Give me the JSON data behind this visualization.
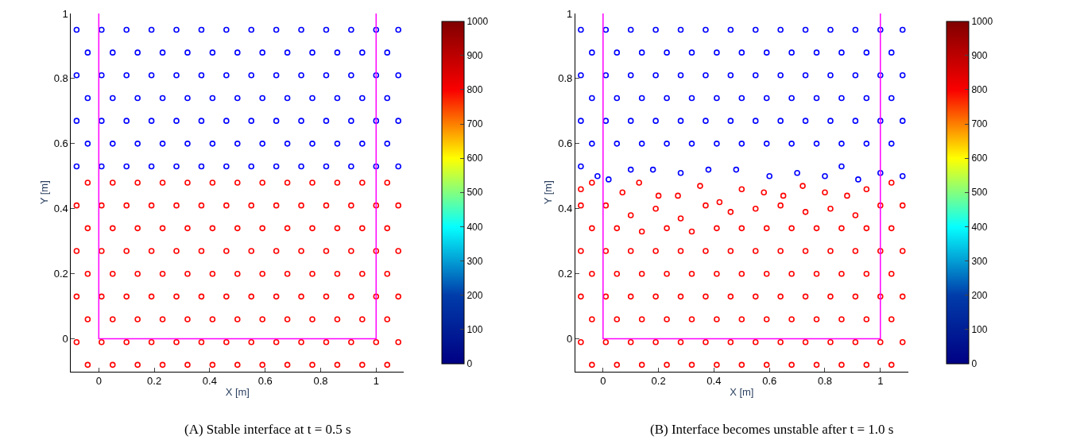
{
  "chart_data": [
    {
      "type": "scatter",
      "title": "(A) Stable interface at t = 0.5 s",
      "xlabel": "X [m]",
      "ylabel": "Y [m]",
      "xlim": [
        -0.1,
        1.1
      ],
      "ylim": [
        -0.1,
        1.0
      ],
      "xticks": [
        0,
        0.2,
        0.4,
        0.6,
        0.8,
        1
      ],
      "yticks": [
        0,
        0.2,
        0.4,
        0.6,
        0.8,
        1
      ],
      "clim": [
        0,
        1000
      ],
      "cticks": [
        0,
        100,
        200,
        300,
        400,
        500,
        600,
        700,
        800,
        900,
        1000
      ],
      "marker": "circle",
      "series": [
        {
          "color": "#0000ff",
          "x": [
            -0.08,
            0.01,
            0.1,
            0.19,
            0.28,
            0.37,
            0.46,
            0.55,
            0.64,
            0.73,
            0.82,
            0.91,
            1.0,
            1.08,
            -0.04,
            0.05,
            0.14,
            0.23,
            0.32,
            0.41,
            0.5,
            0.59,
            0.68,
            0.77,
            0.86,
            0.95,
            1.04,
            -0.08,
            0.01,
            0.1,
            0.19,
            0.28,
            0.37,
            0.46,
            0.55,
            0.64,
            0.73,
            0.82,
            0.91,
            1.0,
            1.08,
            -0.04,
            0.05,
            0.14,
            0.23,
            0.32,
            0.41,
            0.5,
            0.59,
            0.68,
            0.77,
            0.86,
            0.95,
            1.04,
            -0.08,
            0.01,
            0.1,
            0.19,
            0.28,
            0.37,
            0.46,
            0.55,
            0.64,
            0.73,
            0.82,
            0.91,
            1.0,
            1.08,
            -0.04,
            0.05,
            0.14,
            0.23,
            0.32,
            0.41,
            0.5,
            0.59,
            0.68,
            0.77,
            0.86,
            0.95,
            1.04,
            -0.08,
            0.01,
            0.1,
            0.19,
            0.28,
            0.37,
            0.46,
            0.55,
            0.64,
            0.73,
            0.82,
            0.91,
            1.0,
            1.08
          ],
          "values": [
            0.95,
            0.95,
            0.95,
            0.95,
            0.95,
            0.95,
            0.95,
            0.95,
            0.95,
            0.95,
            0.95,
            0.95,
            0.95,
            0.95,
            0.88,
            0.88,
            0.88,
            0.88,
            0.88,
            0.88,
            0.88,
            0.88,
            0.88,
            0.88,
            0.88,
            0.88,
            0.88,
            0.81,
            0.81,
            0.81,
            0.81,
            0.81,
            0.81,
            0.81,
            0.81,
            0.81,
            0.81,
            0.81,
            0.81,
            0.81,
            0.81,
            0.74,
            0.74,
            0.74,
            0.74,
            0.74,
            0.74,
            0.74,
            0.74,
            0.74,
            0.74,
            0.74,
            0.74,
            0.74,
            0.67,
            0.67,
            0.67,
            0.67,
            0.67,
            0.67,
            0.67,
            0.67,
            0.67,
            0.67,
            0.67,
            0.67,
            0.67,
            0.67,
            0.6,
            0.6,
            0.6,
            0.6,
            0.6,
            0.6,
            0.6,
            0.6,
            0.6,
            0.6,
            0.6,
            0.6,
            0.6,
            0.53,
            0.53,
            0.53,
            0.53,
            0.53,
            0.53,
            0.53,
            0.53,
            0.53,
            0.53,
            0.53,
            0.53,
            0.53,
            0.53
          ]
        },
        {
          "color": "#ff0000",
          "x": [
            -0.04,
            0.05,
            0.14,
            0.23,
            0.32,
            0.41,
            0.5,
            0.59,
            0.68,
            0.77,
            0.86,
            0.95,
            1.04,
            -0.08,
            0.01,
            0.1,
            0.19,
            0.28,
            0.37,
            0.46,
            0.55,
            0.64,
            0.73,
            0.82,
            0.91,
            1.0,
            1.08,
            -0.04,
            0.05,
            0.14,
            0.23,
            0.32,
            0.41,
            0.5,
            0.59,
            0.68,
            0.77,
            0.86,
            0.95,
            1.04,
            -0.08,
            0.01,
            0.1,
            0.19,
            0.28,
            0.37,
            0.46,
            0.55,
            0.64,
            0.73,
            0.82,
            0.91,
            1.0,
            1.08,
            -0.04,
            0.05,
            0.14,
            0.23,
            0.32,
            0.41,
            0.5,
            0.59,
            0.68,
            0.77,
            0.86,
            0.95,
            1.04,
            -0.08,
            0.01,
            0.1,
            0.19,
            0.28,
            0.37,
            0.46,
            0.55,
            0.64,
            0.73,
            0.82,
            0.91,
            1.0,
            1.08,
            -0.04,
            0.05,
            0.14,
            0.23,
            0.32,
            0.41,
            0.5,
            0.59,
            0.68,
            0.77,
            0.86,
            0.95,
            1.04,
            -0.08,
            0.01,
            0.1,
            0.19,
            0.28,
            0.37,
            0.46,
            0.55,
            0.64,
            0.73,
            0.82,
            0.91,
            1.0,
            1.08,
            -0.04,
            0.05,
            0.14,
            0.23,
            0.32,
            0.41,
            0.5,
            0.59,
            0.68,
            0.77,
            0.86,
            0.95,
            1.04
          ],
          "values": [
            0.48,
            0.48,
            0.48,
            0.48,
            0.48,
            0.48,
            0.48,
            0.48,
            0.48,
            0.48,
            0.48,
            0.48,
            0.48,
            0.41,
            0.41,
            0.41,
            0.41,
            0.41,
            0.41,
            0.41,
            0.41,
            0.41,
            0.41,
            0.41,
            0.41,
            0.41,
            0.41,
            0.34,
            0.34,
            0.34,
            0.34,
            0.34,
            0.34,
            0.34,
            0.34,
            0.34,
            0.34,
            0.34,
            0.34,
            0.34,
            0.27,
            0.27,
            0.27,
            0.27,
            0.27,
            0.27,
            0.27,
            0.27,
            0.27,
            0.27,
            0.27,
            0.27,
            0.27,
            0.27,
            0.2,
            0.2,
            0.2,
            0.2,
            0.2,
            0.2,
            0.2,
            0.2,
            0.2,
            0.2,
            0.2,
            0.2,
            0.2,
            0.13,
            0.13,
            0.13,
            0.13,
            0.13,
            0.13,
            0.13,
            0.13,
            0.13,
            0.13,
            0.13,
            0.13,
            0.13,
            0.13,
            0.06,
            0.06,
            0.06,
            0.06,
            0.06,
            0.06,
            0.06,
            0.06,
            0.06,
            0.06,
            0.06,
            0.06,
            0.06,
            -0.01,
            -0.01,
            -0.01,
            -0.01,
            -0.01,
            -0.01,
            -0.01,
            -0.01,
            -0.01,
            -0.01,
            -0.01,
            -0.01,
            -0.01,
            -0.01,
            -0.08,
            -0.08,
            -0.08,
            -0.08,
            -0.08,
            -0.08,
            -0.08,
            -0.08,
            -0.08,
            -0.08,
            -0.08,
            -0.08,
            -0.08
          ]
        },
        {
          "type": "line",
          "marker": "none",
          "color": "#ff00ff",
          "x": [
            0,
            0,
            1,
            1
          ],
          "values": [
            1.0,
            0,
            0,
            1.0
          ]
        }
      ]
    },
    {
      "type": "scatter",
      "title": "(B) Interface becomes unstable after t = 1.0 s",
      "xlabel": "X [m]",
      "ylabel": "Y [m]",
      "xlim": [
        -0.1,
        1.1
      ],
      "ylim": [
        -0.1,
        1.0
      ],
      "xticks": [
        0,
        0.2,
        0.4,
        0.6,
        0.8,
        1
      ],
      "yticks": [
        0,
        0.2,
        0.4,
        0.6,
        0.8,
        1
      ],
      "clim": [
        0,
        1000
      ],
      "cticks": [
        0,
        100,
        200,
        300,
        400,
        500,
        600,
        700,
        800,
        900,
        1000
      ],
      "marker": "circle",
      "series": [
        {
          "color": "#0000ff",
          "x": [
            -0.08,
            0.01,
            0.1,
            0.19,
            0.28,
            0.37,
            0.46,
            0.55,
            0.64,
            0.73,
            0.82,
            0.91,
            1.0,
            1.08,
            -0.04,
            0.05,
            0.14,
            0.23,
            0.32,
            0.41,
            0.5,
            0.59,
            0.68,
            0.77,
            0.86,
            0.95,
            1.04,
            -0.08,
            0.01,
            0.1,
            0.19,
            0.28,
            0.37,
            0.46,
            0.55,
            0.64,
            0.73,
            0.82,
            0.91,
            1.0,
            1.08,
            -0.04,
            0.05,
            0.14,
            0.23,
            0.32,
            0.41,
            0.5,
            0.59,
            0.68,
            0.77,
            0.86,
            0.95,
            1.04,
            -0.08,
            0.01,
            0.1,
            0.19,
            0.28,
            0.37,
            0.46,
            0.55,
            0.64,
            0.73,
            0.82,
            0.91,
            1.0,
            1.08,
            -0.04,
            0.05,
            0.14,
            0.23,
            0.32,
            0.41,
            0.5,
            0.59,
            0.68,
            0.77,
            0.86,
            0.95,
            1.04,
            -0.08,
            -0.02,
            0.02,
            0.1,
            0.18,
            0.28,
            0.38,
            0.48,
            0.6,
            0.7,
            0.8,
            0.86,
            0.92,
            1.0,
            1.08
          ],
          "values": [
            0.95,
            0.95,
            0.95,
            0.95,
            0.95,
            0.95,
            0.95,
            0.95,
            0.95,
            0.95,
            0.95,
            0.95,
            0.95,
            0.95,
            0.88,
            0.88,
            0.88,
            0.88,
            0.88,
            0.88,
            0.88,
            0.88,
            0.88,
            0.88,
            0.88,
            0.88,
            0.88,
            0.81,
            0.81,
            0.81,
            0.81,
            0.81,
            0.81,
            0.81,
            0.81,
            0.81,
            0.81,
            0.81,
            0.81,
            0.81,
            0.81,
            0.74,
            0.74,
            0.74,
            0.74,
            0.74,
            0.74,
            0.74,
            0.74,
            0.74,
            0.74,
            0.74,
            0.74,
            0.74,
            0.67,
            0.67,
            0.67,
            0.67,
            0.67,
            0.67,
            0.67,
            0.67,
            0.67,
            0.67,
            0.67,
            0.67,
            0.67,
            0.67,
            0.6,
            0.6,
            0.6,
            0.6,
            0.6,
            0.6,
            0.6,
            0.6,
            0.6,
            0.6,
            0.6,
            0.6,
            0.6,
            0.53,
            0.5,
            0.49,
            0.52,
            0.52,
            0.51,
            0.52,
            0.52,
            0.5,
            0.51,
            0.5,
            0.53,
            0.49,
            0.51,
            0.5
          ]
        },
        {
          "color": "#ff0000",
          "x": [
            -0.08,
            -0.04,
            0.07,
            0.13,
            0.2,
            0.27,
            0.35,
            0.42,
            0.5,
            0.58,
            0.65,
            0.72,
            0.8,
            0.88,
            0.95,
            1.04,
            -0.08,
            0.01,
            0.1,
            0.19,
            0.28,
            0.37,
            0.46,
            0.55,
            0.64,
            0.73,
            0.82,
            0.91,
            1.0,
            1.08,
            -0.04,
            0.05,
            0.14,
            0.23,
            0.32,
            0.41,
            0.5,
            0.59,
            0.68,
            0.77,
            0.86,
            0.95,
            1.04,
            -0.08,
            0.01,
            0.1,
            0.19,
            0.28,
            0.37,
            0.46,
            0.55,
            0.64,
            0.73,
            0.82,
            0.91,
            1.0,
            1.08,
            -0.04,
            0.05,
            0.14,
            0.23,
            0.32,
            0.41,
            0.5,
            0.59,
            0.68,
            0.77,
            0.86,
            0.95,
            1.04,
            -0.08,
            0.01,
            0.1,
            0.19,
            0.28,
            0.37,
            0.46,
            0.55,
            0.64,
            0.73,
            0.82,
            0.91,
            1.0,
            1.08,
            -0.04,
            0.05,
            0.14,
            0.23,
            0.32,
            0.41,
            0.5,
            0.59,
            0.68,
            0.77,
            0.86,
            0.95,
            1.04,
            -0.08,
            0.01,
            0.1,
            0.19,
            0.28,
            0.37,
            0.46,
            0.55,
            0.64,
            0.73,
            0.82,
            0.91,
            1.0,
            1.08,
            -0.04,
            0.05,
            0.14,
            0.23,
            0.32,
            0.41,
            0.5,
            0.59,
            0.68,
            0.77,
            0.86,
            0.95,
            1.04
          ],
          "values": [
            0.46,
            0.48,
            0.45,
            0.48,
            0.44,
            0.44,
            0.47,
            0.42,
            0.46,
            0.45,
            0.44,
            0.47,
            0.45,
            0.44,
            0.46,
            0.48,
            0.41,
            0.41,
            0.38,
            0.4,
            0.37,
            0.41,
            0.39,
            0.4,
            0.41,
            0.39,
            0.4,
            0.38,
            0.41,
            0.41,
            0.34,
            0.34,
            0.33,
            0.34,
            0.33,
            0.34,
            0.34,
            0.34,
            0.34,
            0.34,
            0.34,
            0.34,
            0.34,
            0.27,
            0.27,
            0.27,
            0.27,
            0.27,
            0.27,
            0.27,
            0.27,
            0.27,
            0.27,
            0.27,
            0.27,
            0.27,
            0.27,
            0.2,
            0.2,
            0.2,
            0.2,
            0.2,
            0.2,
            0.2,
            0.2,
            0.2,
            0.2,
            0.2,
            0.2,
            0.2,
            0.13,
            0.13,
            0.13,
            0.13,
            0.13,
            0.13,
            0.13,
            0.13,
            0.13,
            0.13,
            0.13,
            0.13,
            0.13,
            0.13,
            0.06,
            0.06,
            0.06,
            0.06,
            0.06,
            0.06,
            0.06,
            0.06,
            0.06,
            0.06,
            0.06,
            0.06,
            0.06,
            -0.01,
            -0.01,
            -0.01,
            -0.01,
            -0.01,
            -0.01,
            -0.01,
            -0.01,
            -0.01,
            -0.01,
            -0.01,
            -0.01,
            -0.01,
            -0.01,
            -0.08,
            -0.08,
            -0.08,
            -0.08,
            -0.08,
            -0.08,
            -0.08,
            -0.08,
            -0.08,
            -0.08,
            -0.08,
            -0.08,
            -0.08
          ]
        },
        {
          "type": "line",
          "marker": "none",
          "color": "#ff00ff",
          "x": [
            0,
            0,
            1,
            1
          ],
          "values": [
            1.0,
            0,
            0,
            1.0
          ]
        }
      ]
    }
  ]
}
